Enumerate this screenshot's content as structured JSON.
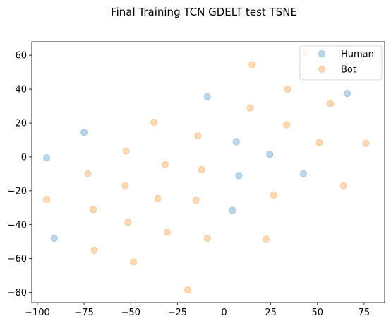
{
  "chart_data": {
    "type": "scatter",
    "title": "Final Training TCN GDELT test TSNE",
    "xlabel": "",
    "ylabel": "",
    "xlim": [
      -103,
      86
    ],
    "ylim": [
      -86,
      68
    ],
    "xticks": [
      -100,
      -75,
      -50,
      -25,
      0,
      25,
      50,
      75
    ],
    "yticks": [
      -80,
      -60,
      -40,
      -20,
      0,
      20,
      40,
      60
    ],
    "grid": false,
    "legend_position": "top-right",
    "series": [
      {
        "name": "Human",
        "color": "#1f77b4",
        "alpha": 0.3,
        "points": [
          {
            "x": -95,
            "y": -0.5
          },
          {
            "x": -91,
            "y": -48
          },
          {
            "x": -75,
            "y": 14.5
          },
          {
            "x": -9,
            "y": 35.5
          },
          {
            "x": 6.5,
            "y": 9
          },
          {
            "x": 8,
            "y": -11
          },
          {
            "x": 4.5,
            "y": -31.5
          },
          {
            "x": 24.5,
            "y": 1.5
          },
          {
            "x": 42.5,
            "y": -10
          },
          {
            "x": 66,
            "y": 37.5
          }
        ]
      },
      {
        "name": "Bot",
        "color": "#ff7f0e",
        "alpha": 0.3,
        "points": [
          {
            "x": 43,
            "y": 61
          },
          {
            "x": 15,
            "y": 54.5
          },
          {
            "x": 34,
            "y": 40
          },
          {
            "x": 57,
            "y": 31.5
          },
          {
            "x": 14,
            "y": 29
          },
          {
            "x": 33.5,
            "y": 19
          },
          {
            "x": -37.5,
            "y": 20.5
          },
          {
            "x": -14,
            "y": 12.5
          },
          {
            "x": -52.5,
            "y": 3.5
          },
          {
            "x": 51,
            "y": 8.5
          },
          {
            "x": 76,
            "y": 8
          },
          {
            "x": -73,
            "y": -10
          },
          {
            "x": -31.5,
            "y": -4.5
          },
          {
            "x": -12,
            "y": -7.5
          },
          {
            "x": -53,
            "y": -17
          },
          {
            "x": -35.5,
            "y": -24.5
          },
          {
            "x": -15,
            "y": -25.5
          },
          {
            "x": 26.5,
            "y": -22.5
          },
          {
            "x": 64,
            "y": -17
          },
          {
            "x": -95,
            "y": -25
          },
          {
            "x": -70,
            "y": -31
          },
          {
            "x": -51.5,
            "y": -38.5
          },
          {
            "x": -30.5,
            "y": -44.5
          },
          {
            "x": -9,
            "y": -48
          },
          {
            "x": 22.5,
            "y": -48.5
          },
          {
            "x": -69.5,
            "y": -55
          },
          {
            "x": -48.5,
            "y": -62
          },
          {
            "x": -19.5,
            "y": -78.5
          }
        ]
      }
    ]
  }
}
